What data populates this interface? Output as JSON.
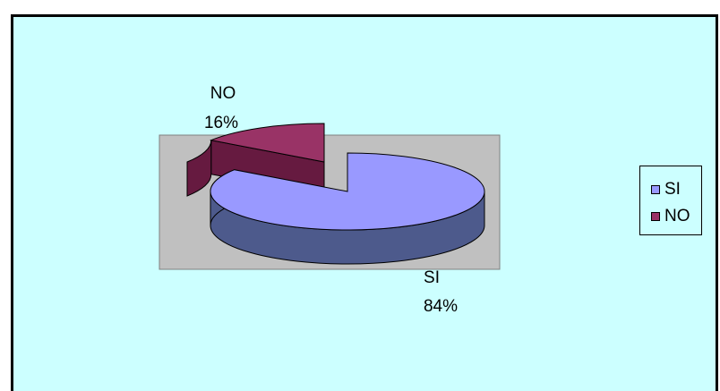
{
  "chart_data": {
    "type": "pie",
    "three_d": true,
    "categories": [
      "SI",
      "NO"
    ],
    "values": [
      84,
      16
    ],
    "data_labels": [
      {
        "name": "SI",
        "percent": "84%"
      },
      {
        "name": "NO",
        "percent": "16%"
      }
    ],
    "exploded_slice": "NO",
    "legend_position": "right",
    "legend": [
      "SI",
      "NO"
    ],
    "colors": {
      "SI": "#9999ff",
      "SI_side": "#4d5a8c",
      "NO": "#993366",
      "NO_side": "#661a40",
      "background": "#ccffff",
      "plot_area": "#c0c0c0"
    }
  }
}
